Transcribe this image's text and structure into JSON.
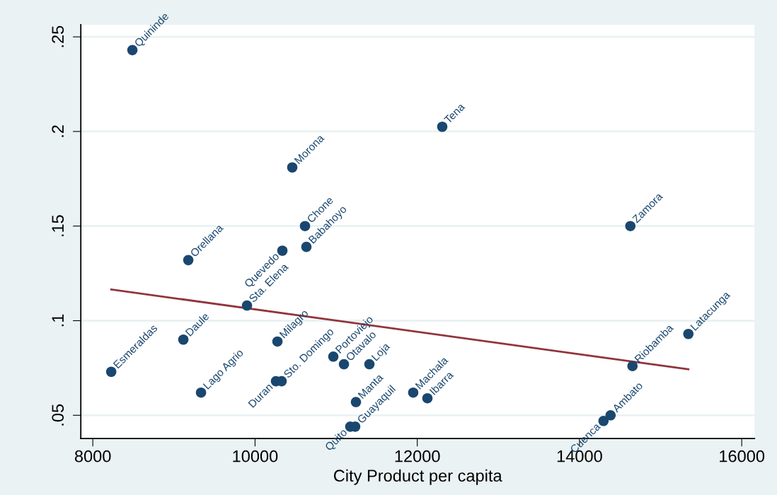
{
  "chart_data": {
    "type": "scatter",
    "xlabel": "City Product per capita",
    "xlim": [
      7852,
      16157
    ],
    "ylim": [
      0.0377,
      0.2564
    ],
    "xticks": [
      8000,
      10000,
      12000,
      14000,
      16000
    ],
    "yticks": [
      {
        "value": 0.05,
        "label": ".05"
      },
      {
        "value": 0.1,
        "label": ".1"
      },
      {
        "value": 0.15,
        "label": ".15"
      },
      {
        "value": 0.2,
        "label": ".2"
      },
      {
        "value": 0.25,
        "label": ".25"
      }
    ],
    "grid": "y",
    "marker": "circle",
    "series": [
      {
        "type": "scatter",
        "color": "#1a476f",
        "x": [
          8488,
          12308,
          10459,
          10616,
          10337,
          10633,
          9177,
          14627,
          9901,
          9116,
          8227,
          10276,
          9334,
          10258,
          10328,
          10965,
          11096,
          11410,
          11244,
          11235,
          11174,
          11950,
          12125,
          14296,
          14383,
          14653,
          15342
        ],
        "values": [
          0.243,
          0.2025,
          0.181,
          0.15,
          0.137,
          0.139,
          0.132,
          0.15,
          0.108,
          0.09,
          0.073,
          0.089,
          0.062,
          0.068,
          0.068,
          0.081,
          0.077,
          0.077,
          0.057,
          0.044,
          0.044,
          0.062,
          0.059,
          0.047,
          0.05,
          0.076,
          0.093
        ]
      },
      {
        "type": "line",
        "color": "#90353b",
        "marker": "none",
        "line_style": "solid",
        "x": [
          8227,
          15342
        ],
        "values": [
          0.1165,
          0.0743
        ]
      }
    ],
    "annotations": [
      {
        "text": "Quininde",
        "x": 8488,
        "y": 0.243
      },
      {
        "text": "Tena",
        "x": 12308,
        "y": 0.2025
      },
      {
        "text": "Morona",
        "x": 10459,
        "y": 0.181
      },
      {
        "text": "Chone",
        "x": 10616,
        "y": 0.15
      },
      {
        "text": "Quevedo",
        "x": 10337,
        "y": 0.137
      },
      {
        "text": "Babahoyo",
        "x": 10633,
        "y": 0.139
      },
      {
        "text": "Orellana",
        "x": 9177,
        "y": 0.132
      },
      {
        "text": "Zamora",
        "x": 14627,
        "y": 0.15
      },
      {
        "text": "Sta. Elena",
        "x": 9901,
        "y": 0.108
      },
      {
        "text": "Daule",
        "x": 9116,
        "y": 0.09
      },
      {
        "text": "Esmeraldas",
        "x": 8227,
        "y": 0.073
      },
      {
        "text": "Milagro",
        "x": 10276,
        "y": 0.089
      },
      {
        "text": "Lago Agrio",
        "x": 9334,
        "y": 0.062
      },
      {
        "text": "Duran",
        "x": 10258,
        "y": 0.068
      },
      {
        "text": "Sto. Domingo",
        "x": 10328,
        "y": 0.068
      },
      {
        "text": "Portoviejo",
        "x": 10965,
        "y": 0.081
      },
      {
        "text": "Otavalo",
        "x": 11096,
        "y": 0.077
      },
      {
        "text": "Loja",
        "x": 11410,
        "y": 0.077
      },
      {
        "text": "Manta",
        "x": 11244,
        "y": 0.057
      },
      {
        "text": "Guayaquil",
        "x": 11235,
        "y": 0.044
      },
      {
        "text": "Quito",
        "x": 11174,
        "y": 0.044
      },
      {
        "text": "Machala",
        "x": 11950,
        "y": 0.062
      },
      {
        "text": "Ibarra",
        "x": 12125,
        "y": 0.059
      },
      {
        "text": "Cuenca",
        "x": 14296,
        "y": 0.047
      },
      {
        "text": "Ambato",
        "x": 14383,
        "y": 0.05
      },
      {
        "text": "Riobamba",
        "x": 14653,
        "y": 0.076
      },
      {
        "text": "Latacunga",
        "x": 15342,
        "y": 0.093
      }
    ]
  }
}
